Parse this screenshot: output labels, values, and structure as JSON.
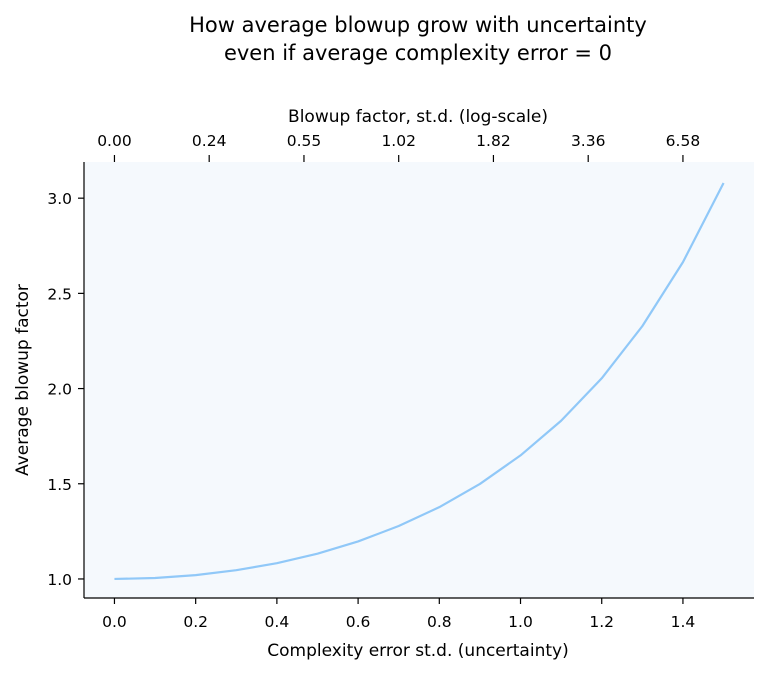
{
  "chart_data": {
    "type": "line",
    "title": "How average blowup grow with uncertainty",
    "subtitle": "even if average complexity error = 0",
    "xlabel": "Complexity error st.d. (uncertainty)",
    "ylabel": "Average blowup factor",
    "top_xlabel": "Blowup factor, st.d. (log-scale)",
    "xlim": [
      -0.075,
      1.575
    ],
    "ylim": [
      0.9,
      3.19
    ],
    "x_ticks": [
      0.0,
      0.2,
      0.4,
      0.6,
      0.8,
      1.0,
      1.2,
      1.4
    ],
    "x_tick_labels": [
      "0.0",
      "0.2",
      "0.4",
      "0.6",
      "0.8",
      "1.0",
      "1.2",
      "1.4"
    ],
    "y_ticks": [
      1.0,
      1.5,
      2.0,
      2.5,
      3.0
    ],
    "y_tick_labels": [
      "1.0",
      "1.5",
      "2.0",
      "2.5",
      "3.0"
    ],
    "top_ticks": [
      0.0,
      0.2333,
      0.4667,
      0.7,
      0.9333,
      1.1667,
      1.4
    ],
    "top_tick_labels": [
      "0.00",
      "0.24",
      "0.55",
      "1.02",
      "1.82",
      "3.36",
      "6.58"
    ],
    "series": [
      {
        "x": [
          0.0,
          0.1,
          0.2,
          0.3,
          0.4,
          0.5,
          0.6,
          0.7,
          0.8,
          0.9,
          1.0,
          1.1,
          1.2,
          1.3,
          1.4,
          1.5
        ],
        "y": [
          1.0,
          1.005,
          1.02,
          1.046,
          1.083,
          1.133,
          1.197,
          1.278,
          1.377,
          1.499,
          1.649,
          1.831,
          2.054,
          2.328,
          2.664,
          3.08
        ]
      }
    ],
    "colors": {
      "line": "#90c8f8",
      "plot_background": "#f5f9fd"
    },
    "grid": false,
    "legend": "none"
  }
}
